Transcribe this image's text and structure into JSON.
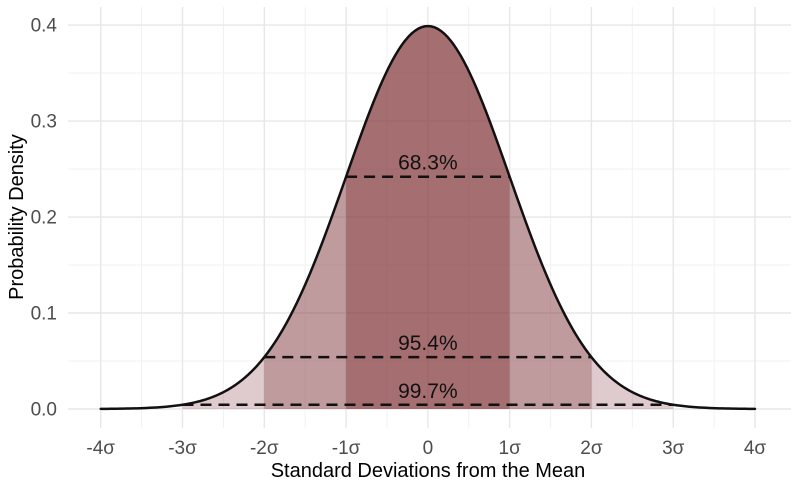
{
  "chart_data": {
    "type": "area",
    "title": "",
    "xlabel": "Standard Deviations from the Mean",
    "ylabel": "Probability Density",
    "curve": {
      "name": "standard-normal-pdf",
      "x_range": [
        -4,
        4
      ],
      "mean": 0,
      "sd": 1,
      "peak_density": 0.3989
    },
    "xlim": [
      -4.4,
      4.44
    ],
    "ylim": [
      -0.0198,
      0.4188
    ],
    "x_ticks": [
      {
        "v": -4,
        "label": "-4σ"
      },
      {
        "v": -3,
        "label": "-3σ"
      },
      {
        "v": -2,
        "label": "-2σ"
      },
      {
        "v": -1,
        "label": "-1σ"
      },
      {
        "v": 0,
        "label": "0"
      },
      {
        "v": 1,
        "label": "1σ"
      },
      {
        "v": 2,
        "label": "2σ"
      },
      {
        "v": 3,
        "label": "3σ"
      },
      {
        "v": 4,
        "label": "4σ"
      }
    ],
    "y_ticks": [
      {
        "v": 0.0,
        "label": "0.0"
      },
      {
        "v": 0.1,
        "label": "0.1"
      },
      {
        "v": 0.2,
        "label": "0.2"
      },
      {
        "v": 0.3,
        "label": "0.3"
      },
      {
        "v": 0.4,
        "label": "0.4"
      }
    ],
    "grid": {
      "show_major": true,
      "show_minor": true
    },
    "bands": [
      {
        "name": "band-minus3-to-minus2",
        "from": -3,
        "to": -2,
        "opacity": 0.26
      },
      {
        "name": "band-minus2-to-minus1",
        "from": -2,
        "to": -1,
        "opacity": 0.5
      },
      {
        "name": "band-minus1-to-plus1",
        "from": -1,
        "to": 1,
        "opacity": 0.72
      },
      {
        "name": "band-plus1-to-plus2",
        "from": 1,
        "to": 2,
        "opacity": 0.5
      },
      {
        "name": "band-plus2-to-plus3",
        "from": 2,
        "to": 3,
        "opacity": 0.26
      }
    ],
    "interval_lines": [
      {
        "label": "68.3%",
        "sigma": 1,
        "density": 0.242
      },
      {
        "label": "95.4%",
        "sigma": 2,
        "density": 0.054
      },
      {
        "label": "99.7%",
        "sigma": 3,
        "density": 0.0044
      }
    ],
    "colors": {
      "band_base": "#82373c",
      "curve": "#111111",
      "dashed_line": "#111111",
      "annotation_text": "#111111",
      "grid_major": "#e7e7e7",
      "grid_minor": "#f1f1f1",
      "tick_label": "#4d4d4d",
      "axis_title": "#000000",
      "background": "#ffffff"
    }
  }
}
